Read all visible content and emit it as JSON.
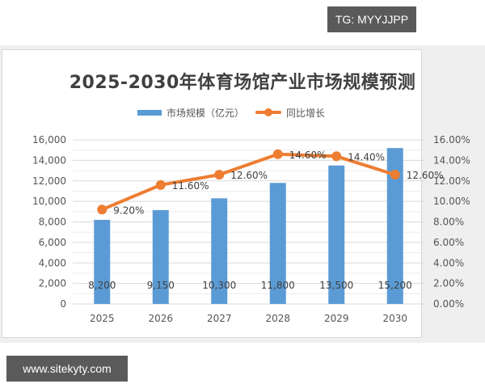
{
  "badges": {
    "top_right": "TG: MYYJJPP",
    "bottom_left": "www.sitekyty.com"
  },
  "chart": {
    "title": "2025-2030年体育场馆产业市场规模预测",
    "legend": {
      "bar_label": "市场规模（亿元）",
      "line_label": "同比增长"
    },
    "left_axis_ticks": [
      "0",
      "2,000",
      "4,000",
      "6,000",
      "8,000",
      "10,000",
      "12,000",
      "14,000",
      "16,000"
    ],
    "right_axis_ticks": [
      "0.00%",
      "2.00%",
      "4.00%",
      "6.00%",
      "8.00%",
      "10.00%",
      "12.00%",
      "14.00%",
      "16.00%"
    ],
    "bar_labels": [
      "8,200",
      "9,150",
      "10,300",
      "11,800",
      "13,500",
      "15,200"
    ],
    "line_labels": [
      "9.20%",
      "11.60%",
      "12.60%",
      "14.60%",
      "14.40%",
      "12.60%"
    ],
    "x_labels": [
      "2025",
      "2026",
      "2027",
      "2028",
      "2029",
      "2030"
    ],
    "colors": {
      "bar": "#5b9bd5",
      "line": "#ed7d31",
      "grid": "#d9d9d9"
    }
  },
  "chart_data": {
    "type": "bar",
    "title": "2025-2030年体育场馆产业市场规模预测",
    "categories": [
      "2025",
      "2026",
      "2027",
      "2028",
      "2029",
      "2030"
    ],
    "series": [
      {
        "name": "市场规模（亿元）",
        "type": "bar",
        "axis": "left",
        "values": [
          8200,
          9150,
          10300,
          11800,
          13500,
          15200
        ]
      },
      {
        "name": "同比增长",
        "type": "line",
        "axis": "right",
        "values": [
          9.2,
          11.6,
          12.6,
          14.6,
          14.4,
          12.6
        ],
        "unit": "%"
      }
    ],
    "xlabel": "",
    "ylabel": "",
    "ylim": [
      0,
      16000
    ],
    "y2lim": [
      0,
      16
    ],
    "grid": true,
    "legend_position": "top"
  }
}
